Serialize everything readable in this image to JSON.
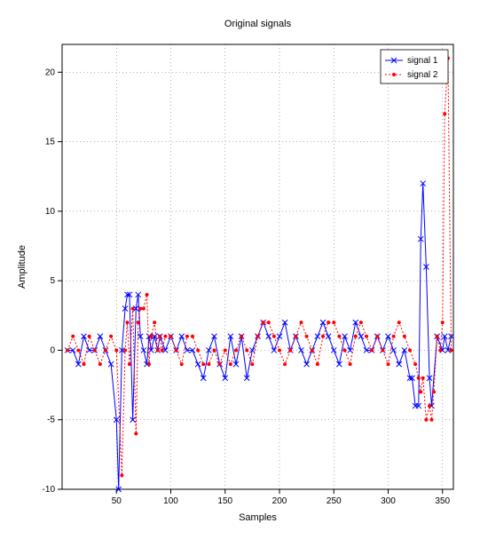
{
  "chart": {
    "type": "line-scatter",
    "title": "Original signals",
    "xlabel": "Samples",
    "ylabel": "Amplitude",
    "title_fontsize": 11,
    "label_fontsize": 11,
    "tick_fontsize": 10,
    "xlim": [
      0,
      360
    ],
    "ylim": [
      -10,
      22
    ],
    "xtick_step": 50,
    "xticks": [
      50,
      100,
      150,
      200,
      250,
      300,
      350
    ],
    "yticks": [
      -10,
      -5,
      0,
      5,
      10,
      15,
      20
    ],
    "grid_on": true,
    "grid_color": "#000000",
    "grid_dash": "1 3",
    "background_color": "#ffffff",
    "axis_color": "#000000",
    "legend": {
      "position": "top-right",
      "box_stroke": "#000000",
      "box_fill": "#ffffff",
      "items": [
        {
          "label": "signal 1",
          "color": "#0000ff",
          "marker": "x",
          "line_style": "solid"
        },
        {
          "label": "signal 2",
          "color": "#ff0000",
          "marker": "dot",
          "line_style": "dotted"
        }
      ]
    },
    "series": [
      {
        "name": "signal 1",
        "color": "#0000ff",
        "line_style": "solid",
        "line_width": 1,
        "marker": "x",
        "marker_size": 3,
        "x": [
          5,
          10,
          15,
          20,
          25,
          30,
          35,
          40,
          45,
          50,
          52,
          55,
          58,
          60,
          62,
          65,
          68,
          70,
          72,
          75,
          78,
          80,
          82,
          85,
          88,
          90,
          95,
          100,
          105,
          110,
          115,
          120,
          125,
          130,
          135,
          140,
          145,
          150,
          155,
          160,
          165,
          170,
          175,
          180,
          185,
          190,
          195,
          200,
          205,
          210,
          215,
          220,
          225,
          230,
          235,
          240,
          245,
          250,
          255,
          260,
          265,
          270,
          275,
          280,
          285,
          290,
          295,
          300,
          305,
          310,
          315,
          320,
          322,
          325,
          328,
          330,
          332,
          335,
          338,
          340,
          345,
          350,
          352,
          355,
          358
        ],
        "y": [
          0,
          0,
          -1,
          1,
          0,
          0,
          1,
          0,
          -1,
          -5,
          -10,
          0,
          3,
          4,
          4,
          -5,
          3,
          4,
          1,
          0,
          -1,
          1,
          0,
          1,
          0,
          1,
          0,
          1,
          0,
          1,
          0,
          0,
          -1,
          -2,
          0,
          1,
          -1,
          -2,
          1,
          -1,
          1,
          -2,
          0,
          1,
          2,
          1,
          0,
          1,
          2,
          0,
          1,
          0,
          -1,
          0,
          1,
          2,
          1,
          0,
          -1,
          1,
          0,
          2,
          1,
          0,
          0,
          1,
          0,
          1,
          0,
          -1,
          0,
          -2,
          -2,
          -4,
          -4,
          8,
          12,
          6,
          -2,
          -4,
          1,
          0,
          1,
          0,
          1
        ]
      },
      {
        "name": "signal 2",
        "color": "#ff0000",
        "line_style": "dotted",
        "line_width": 1,
        "marker": "dot",
        "marker_size": 2,
        "x": [
          5,
          10,
          15,
          20,
          25,
          30,
          35,
          40,
          45,
          50,
          55,
          58,
          60,
          62,
          65,
          68,
          70,
          72,
          75,
          78,
          80,
          82,
          85,
          88,
          90,
          92,
          95,
          100,
          105,
          110,
          115,
          120,
          125,
          130,
          135,
          140,
          145,
          150,
          155,
          160,
          165,
          170,
          175,
          180,
          185,
          190,
          195,
          200,
          205,
          210,
          215,
          220,
          225,
          230,
          235,
          240,
          245,
          250,
          255,
          260,
          265,
          270,
          275,
          280,
          285,
          290,
          295,
          300,
          305,
          310,
          315,
          320,
          325,
          328,
          330,
          332,
          335,
          338,
          340,
          342,
          345,
          348,
          350,
          352,
          355,
          358
        ],
        "y": [
          0,
          1,
          0,
          -1,
          1,
          0,
          -1,
          0,
          1,
          0,
          -9,
          0,
          2,
          -1,
          3,
          -6,
          2,
          3,
          3,
          4,
          -1,
          1,
          2,
          0,
          1,
          0,
          1,
          1,
          0,
          -1,
          1,
          1,
          0,
          -1,
          -1,
          0,
          -1,
          0,
          -1,
          0,
          1,
          0,
          -1,
          1,
          2,
          2,
          1,
          0,
          -1,
          0,
          1,
          2,
          1,
          0,
          -1,
          1,
          2,
          2,
          1,
          0,
          -1,
          1,
          2,
          1,
          0,
          1,
          0,
          -1,
          1,
          2,
          1,
          0,
          -1,
          -2,
          -3,
          -2,
          -5,
          -4,
          -5,
          -3,
          1,
          0,
          2,
          17,
          21,
          0
        ]
      }
    ]
  }
}
